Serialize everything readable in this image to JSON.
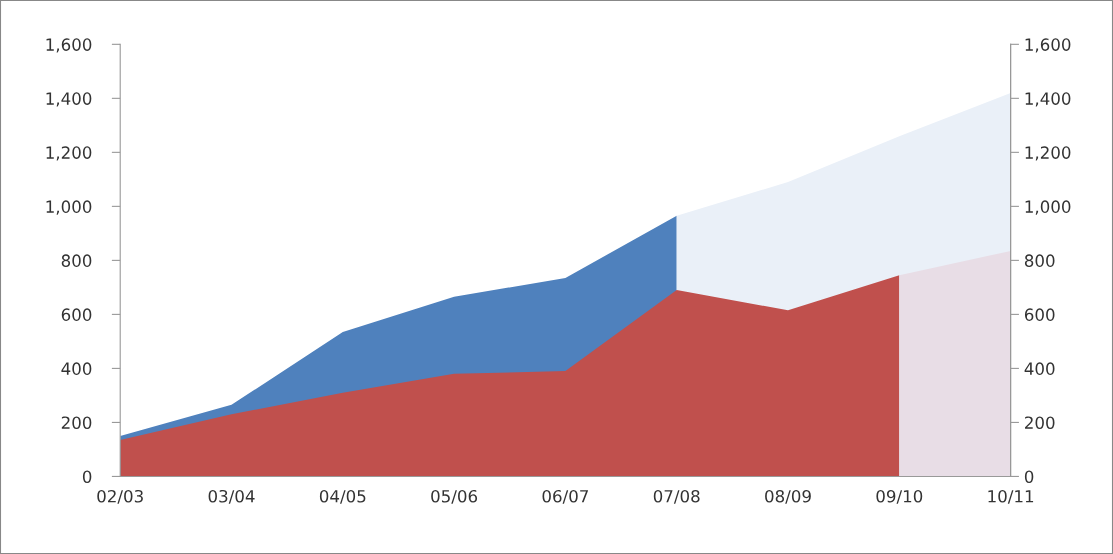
{
  "chart_data": {
    "type": "area",
    "categories": [
      "02/03",
      "03/04",
      "04/05",
      "05/06",
      "06/07",
      "07/08",
      "08/09",
      "09/10",
      "10/11"
    ],
    "series": [
      {
        "color": "#4f81bd",
        "values": [
          150,
          265,
          535,
          665,
          735,
          965,
          null,
          null,
          null
        ]
      },
      {
        "color": "#eaf0f8",
        "values": [
          null,
          null,
          null,
          null,
          null,
          965,
          1090,
          1260,
          1420
        ]
      },
      {
        "color": "#c0504d",
        "values": [
          135,
          230,
          310,
          380,
          390,
          690,
          615,
          745,
          null
        ]
      },
      {
        "color": "#e8dde6",
        "values": [
          null,
          null,
          null,
          null,
          null,
          null,
          null,
          745,
          835
        ]
      }
    ],
    "ylim": [
      0,
      1600
    ],
    "yticks": [
      {
        "value": 0,
        "label": "0"
      },
      {
        "value": 200,
        "label": "200"
      },
      {
        "value": 400,
        "label": "400"
      },
      {
        "value": 600,
        "label": "600"
      },
      {
        "value": 800,
        "label": "800"
      },
      {
        "value": 1000,
        "label": "1,000"
      },
      {
        "value": 1200,
        "label": "1,200"
      },
      {
        "value": 1400,
        "label": "1,400"
      },
      {
        "value": 1600,
        "label": "1,600"
      }
    ],
    "y2lim": [
      0,
      1600
    ],
    "y2ticks": [
      {
        "value": 0,
        "label": "0"
      },
      {
        "value": 200,
        "label": "200"
      },
      {
        "value": 400,
        "label": "400"
      },
      {
        "value": 600,
        "label": "600"
      },
      {
        "value": 800,
        "label": "800"
      },
      {
        "value": 1000,
        "label": "1,000"
      },
      {
        "value": 1200,
        "label": "1,200"
      },
      {
        "value": 1400,
        "label": "1,400"
      },
      {
        "value": 1600,
        "label": "1,600"
      }
    ],
    "grid": false,
    "legend": false
  }
}
